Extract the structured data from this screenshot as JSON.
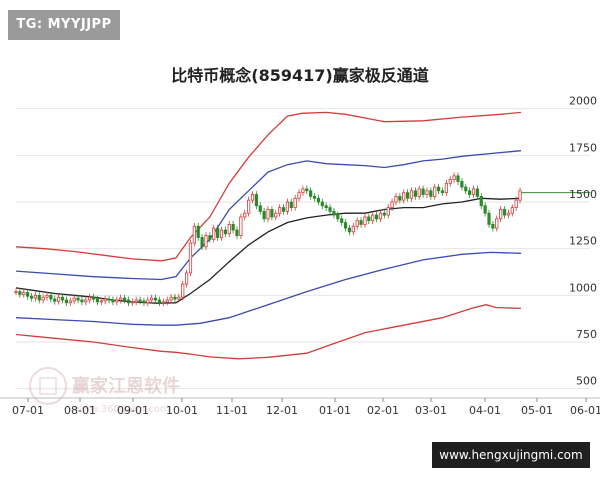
{
  "badge": {
    "text": "TG: MYYJJPP"
  },
  "chart_data": {
    "type": "line",
    "title": "比特币概念(859417)赢家极反通道",
    "x_ticks": [
      "07-01",
      "08-01",
      "09-01",
      "10-01",
      "11-01",
      "12-01",
      "01-01",
      "02-01",
      "03-01",
      "04-01",
      "05-01",
      "06-01"
    ],
    "y_ticks": [
      500,
      750,
      1000,
      1250,
      1500,
      1750,
      2000
    ],
    "ylim": [
      450,
      2100
    ],
    "grid": "horizontal",
    "last_value_line": 1550,
    "series": [
      {
        "role": "upper-outer",
        "color": "#d23c3c",
        "points": [
          [
            0,
            1260
          ],
          [
            30,
            1250
          ],
          [
            60,
            1235
          ],
          [
            90,
            1215
          ],
          [
            120,
            1195
          ],
          [
            150,
            1185
          ],
          [
            165,
            1200
          ],
          [
            180,
            1310
          ],
          [
            200,
            1420
          ],
          [
            220,
            1600
          ],
          [
            240,
            1740
          ],
          [
            260,
            1860
          ],
          [
            280,
            1960
          ],
          [
            295,
            1975
          ],
          [
            320,
            1980
          ],
          [
            340,
            1970
          ],
          [
            380,
            1930
          ],
          [
            420,
            1935
          ],
          [
            460,
            1955
          ],
          [
            500,
            1970
          ],
          [
            521,
            1980
          ]
        ]
      },
      {
        "role": "upper-inner",
        "color": "#3c4ab4",
        "points": [
          [
            0,
            1130
          ],
          [
            40,
            1115
          ],
          [
            80,
            1100
          ],
          [
            120,
            1090
          ],
          [
            150,
            1085
          ],
          [
            165,
            1100
          ],
          [
            180,
            1200
          ],
          [
            200,
            1300
          ],
          [
            220,
            1460
          ],
          [
            240,
            1560
          ],
          [
            260,
            1660
          ],
          [
            280,
            1700
          ],
          [
            300,
            1720
          ],
          [
            320,
            1705
          ],
          [
            340,
            1700
          ],
          [
            360,
            1695
          ],
          [
            380,
            1685
          ],
          [
            400,
            1700
          ],
          [
            420,
            1720
          ],
          [
            440,
            1730
          ],
          [
            460,
            1745
          ],
          [
            490,
            1760
          ],
          [
            521,
            1775
          ]
        ]
      },
      {
        "role": "middle",
        "color": "#222222",
        "points": [
          [
            0,
            1040
          ],
          [
            20,
            1025
          ],
          [
            40,
            1010
          ],
          [
            60,
            1000
          ],
          [
            80,
            990
          ],
          [
            100,
            975
          ],
          [
            120,
            965
          ],
          [
            145,
            958
          ],
          [
            165,
            960
          ],
          [
            180,
            1010
          ],
          [
            200,
            1085
          ],
          [
            220,
            1180
          ],
          [
            240,
            1270
          ],
          [
            260,
            1340
          ],
          [
            280,
            1390
          ],
          [
            300,
            1415
          ],
          [
            320,
            1430
          ],
          [
            340,
            1440
          ],
          [
            360,
            1440
          ],
          [
            380,
            1460
          ],
          [
            400,
            1470
          ],
          [
            420,
            1470
          ],
          [
            440,
            1490
          ],
          [
            460,
            1500
          ],
          [
            480,
            1520
          ],
          [
            500,
            1515
          ],
          [
            521,
            1520
          ]
        ]
      },
      {
        "role": "lower-inner",
        "color": "#3c4ab4",
        "points": [
          [
            0,
            880
          ],
          [
            40,
            870
          ],
          [
            80,
            860
          ],
          [
            120,
            845
          ],
          [
            150,
            840
          ],
          [
            165,
            840
          ],
          [
            190,
            850
          ],
          [
            220,
            880
          ],
          [
            260,
            950
          ],
          [
            300,
            1020
          ],
          [
            340,
            1085
          ],
          [
            380,
            1140
          ],
          [
            420,
            1190
          ],
          [
            460,
            1220
          ],
          [
            490,
            1230
          ],
          [
            521,
            1225
          ]
        ]
      },
      {
        "role": "lower-outer",
        "color": "#d23c3c",
        "points": [
          [
            0,
            790
          ],
          [
            40,
            770
          ],
          [
            80,
            750
          ],
          [
            120,
            720
          ],
          [
            150,
            700
          ],
          [
            165,
            695
          ],
          [
            180,
            685
          ],
          [
            200,
            670
          ],
          [
            230,
            660
          ],
          [
            260,
            668
          ],
          [
            300,
            690
          ],
          [
            330,
            745
          ],
          [
            360,
            800
          ],
          [
            400,
            840
          ],
          [
            440,
            880
          ],
          [
            470,
            930
          ],
          [
            485,
            950
          ],
          [
            495,
            935
          ],
          [
            521,
            930
          ]
        ]
      }
    ],
    "candles": [
      [
        0,
        1020
      ],
      [
        4,
        1005
      ],
      [
        8,
        1015
      ],
      [
        12,
        995
      ],
      [
        16,
        985
      ],
      [
        20,
        1000
      ],
      [
        24,
        975
      ],
      [
        28,
        990
      ],
      [
        32,
        1000
      ],
      [
        36,
        980
      ],
      [
        40,
        968
      ],
      [
        44,
        990
      ],
      [
        48,
        975
      ],
      [
        52,
        960
      ],
      [
        56,
        970
      ],
      [
        60,
        985
      ],
      [
        64,
        975
      ],
      [
        68,
        965
      ],
      [
        72,
        975
      ],
      [
        76,
        990
      ],
      [
        80,
        980
      ],
      [
        84,
        965
      ],
      [
        88,
        970
      ],
      [
        92,
        980
      ],
      [
        96,
        975
      ],
      [
        100,
        965
      ],
      [
        104,
        975
      ],
      [
        108,
        985
      ],
      [
        112,
        975
      ],
      [
        116,
        960
      ],
      [
        120,
        965
      ],
      [
        124,
        975
      ],
      [
        128,
        970
      ],
      [
        132,
        960
      ],
      [
        136,
        975
      ],
      [
        140,
        985
      ],
      [
        144,
        975
      ],
      [
        148,
        960
      ],
      [
        152,
        965
      ],
      [
        156,
        975
      ],
      [
        160,
        990
      ],
      [
        164,
        980
      ],
      [
        168,
        990
      ],
      [
        172,
        1060
      ],
      [
        176,
        1120
      ],
      [
        180,
        1280
      ],
      [
        184,
        1370
      ],
      [
        188,
        1310
      ],
      [
        192,
        1260
      ],
      [
        196,
        1320
      ],
      [
        200,
        1300
      ],
      [
        204,
        1360
      ],
      [
        208,
        1310
      ],
      [
        212,
        1350
      ],
      [
        216,
        1330
      ],
      [
        220,
        1380
      ],
      [
        224,
        1350
      ],
      [
        228,
        1320
      ],
      [
        232,
        1420
      ],
      [
        236,
        1440
      ],
      [
        240,
        1510
      ],
      [
        244,
        1540
      ],
      [
        248,
        1480
      ],
      [
        252,
        1450
      ],
      [
        256,
        1410
      ],
      [
        260,
        1460
      ],
      [
        264,
        1420
      ],
      [
        268,
        1440
      ],
      [
        272,
        1470
      ],
      [
        276,
        1450
      ],
      [
        280,
        1500
      ],
      [
        284,
        1470
      ],
      [
        288,
        1520
      ],
      [
        292,
        1550
      ],
      [
        296,
        1570
      ],
      [
        300,
        1560
      ],
      [
        304,
        1530
      ],
      [
        308,
        1520
      ],
      [
        312,
        1500
      ],
      [
        316,
        1480
      ],
      [
        320,
        1470
      ],
      [
        324,
        1450
      ],
      [
        328,
        1430
      ],
      [
        332,
        1410
      ],
      [
        336,
        1390
      ],
      [
        340,
        1360
      ],
      [
        344,
        1340
      ],
      [
        348,
        1370
      ],
      [
        352,
        1400
      ],
      [
        356,
        1380
      ],
      [
        360,
        1420
      ],
      [
        364,
        1400
      ],
      [
        368,
        1430
      ],
      [
        372,
        1410
      ],
      [
        376,
        1440
      ],
      [
        380,
        1430
      ],
      [
        384,
        1470
      ],
      [
        388,
        1500
      ],
      [
        392,
        1530
      ],
      [
        396,
        1510
      ],
      [
        400,
        1550
      ],
      [
        404,
        1520
      ],
      [
        408,
        1560
      ],
      [
        412,
        1530
      ],
      [
        416,
        1570
      ],
      [
        420,
        1540
      ],
      [
        424,
        1560
      ],
      [
        428,
        1530
      ],
      [
        432,
        1580
      ],
      [
        436,
        1560
      ],
      [
        440,
        1550
      ],
      [
        444,
        1600
      ],
      [
        448,
        1620
      ],
      [
        452,
        1640
      ],
      [
        456,
        1610
      ],
      [
        460,
        1580
      ],
      [
        464,
        1560
      ],
      [
        468,
        1540
      ],
      [
        472,
        1570
      ],
      [
        476,
        1530
      ],
      [
        480,
        1480
      ],
      [
        484,
        1440
      ],
      [
        488,
        1380
      ],
      [
        492,
        1360
      ],
      [
        496,
        1410
      ],
      [
        500,
        1460
      ],
      [
        504,
        1430
      ],
      [
        508,
        1440
      ],
      [
        512,
        1470
      ],
      [
        516,
        1510
      ],
      [
        520,
        1560
      ]
    ]
  },
  "watermark": {
    "brand": "赢家江恩软件",
    "site": "www.360gann.com"
  },
  "footer": {
    "site": "www.hengxujingmi.com"
  }
}
